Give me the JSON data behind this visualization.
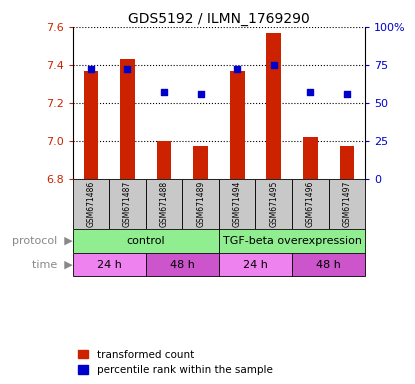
{
  "title": "GDS5192 / ILMN_1769290",
  "samples": [
    "GSM671486",
    "GSM671487",
    "GSM671488",
    "GSM671489",
    "GSM671494",
    "GSM671495",
    "GSM671496",
    "GSM671497"
  ],
  "red_values": [
    7.37,
    7.43,
    7.0,
    6.97,
    7.37,
    7.57,
    7.02,
    6.97
  ],
  "blue_values": [
    72,
    72,
    57,
    56,
    72,
    75,
    57,
    56
  ],
  "ylim_left": [
    6.8,
    7.6
  ],
  "ylim_right": [
    0,
    100
  ],
  "yticks_left": [
    6.8,
    7.0,
    7.2,
    7.4,
    7.6
  ],
  "yticks_right": [
    0,
    25,
    50,
    75,
    100
  ],
  "ytick_labels_right": [
    "0",
    "25",
    "50",
    "75",
    "100%"
  ],
  "bar_color": "#cc2200",
  "dot_color": "#0000cc",
  "sample_bg": "#c8c8c8",
  "protocol_green": "#90ee90",
  "time_purple_light": "#ee82ee",
  "time_purple_dark": "#cc55cc",
  "left_tick_color": "#cc2200",
  "right_tick_color": "#0000cc",
  "protocol_label": "protocol",
  "time_label": "time",
  "protocol_texts": [
    "control",
    "TGF-beta overexpression"
  ],
  "time_texts": [
    "24 h",
    "48 h",
    "24 h",
    "48 h"
  ]
}
